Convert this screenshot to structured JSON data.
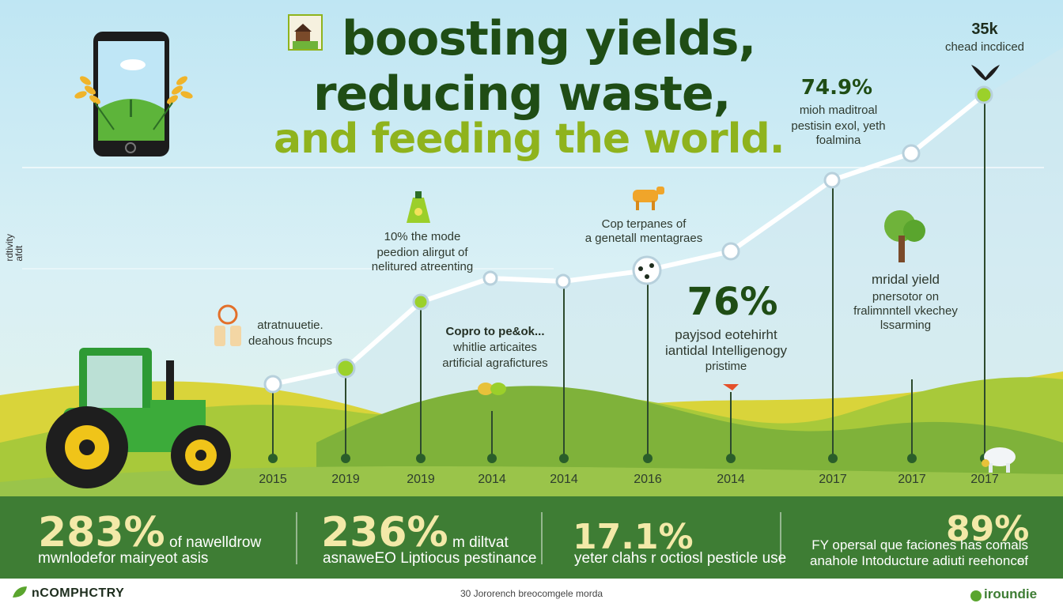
{
  "title": {
    "line1": "boosting yields,",
    "line2": "reducing waste,",
    "line3": "and feeding the world."
  },
  "side_label": "rdtivity\nafdt",
  "callouts": {
    "top_right_value": "35k",
    "top_right_label": "chead incdiced",
    "pct_749": "74.9%",
    "pct_749_text": [
      "mioh maditroal",
      "pestisin exol, yeth",
      "foalmina"
    ],
    "left_pair": [
      "atratnuuetie.",
      "deahous fncups"
    ],
    "mid_10": [
      "10% the mode",
      "peedion alirgut of",
      "nelitured atreenting"
    ],
    "crop_small": "Copro to pe&ok...",
    "crop_lines": [
      "whitlie articaites",
      "artificial agrafictures"
    ],
    "cop_lines": [
      "Cop terpanes of",
      "a genetall mentagraes"
    ],
    "pct_76": "76%",
    "pct_76_lines": [
      "payjsod eotehirht",
      "iantidal Intelligenogy",
      "pristime"
    ],
    "yield_title": "mridal yield",
    "yield_lines": [
      "pnersotor on",
      "fralimnntell vkechey",
      "lssarming"
    ]
  },
  "timeline_years": [
    "2015",
    "2019",
    "2019",
    "2014",
    "2014",
    "2016",
    "2014",
    "2017",
    "2017",
    "2017"
  ],
  "stats": [
    {
      "value": "283%",
      "line_a": "of nawelldrow",
      "line_b": "mwnlodefor mairyeot asis"
    },
    {
      "value": "236%",
      "line_a": "m diltvat",
      "line_b": "asnaweEO Liptiocus pestinance"
    },
    {
      "value": "17.1%",
      "line_a": "",
      "line_b": "yeter clahs r octiosl pesticle use"
    },
    {
      "value": "89%",
      "line_a": "FY opersal que faciones has comals of",
      "line_b": "anahole Intoducture adiuti reehonce."
    }
  ],
  "footer": {
    "brand_left": "nCOMPHCTRY",
    "center": "30 Jororench breocomgele morda",
    "brand_right": "iroundie"
  },
  "colors": {
    "title_dark": "#1f4d15",
    "title_light": "#8fb31d",
    "band": "#3e7d34",
    "stat_value": "#f3e9a8",
    "tractor": "#3cab3a"
  }
}
